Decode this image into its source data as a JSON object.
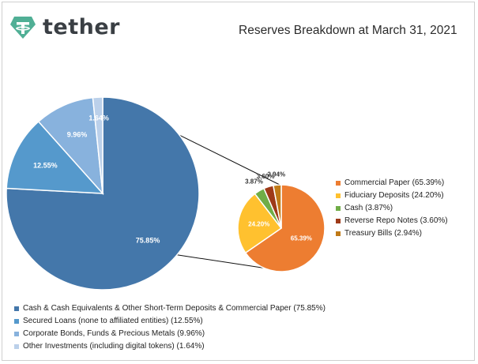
{
  "brand": {
    "name": "tether",
    "logo_icon": "tether-logo-icon",
    "logo_color": "#50AF95"
  },
  "chart_data": [
    {
      "type": "pie",
      "title": "Reserves Breakdown at March 31, 2021",
      "series": [
        {
          "values": [
            75.85,
            12.55,
            9.96,
            1.64
          ],
          "labels": [
            "75.85%",
            "12.55%",
            "9.96%",
            "1.64%"
          ]
        }
      ],
      "categories": [
        "Cash & Cash Equivalents & Other Short-Term Deposits & Commercial Paper (75.85%)",
        "Secured Loans (none to affiliated entities) (12.55%)",
        "Corporate Bonds, Funds & Precious Metals (9.96%)",
        "Other Investments (including digital tokens) (1.64%)"
      ],
      "colors": [
        "#4477AA",
        "#5599CC",
        "#88B2DD",
        "#BBD0EA"
      ],
      "legend": "bottom-left"
    },
    {
      "type": "pie",
      "series": [
        {
          "values": [
            65.39,
            24.2,
            3.87,
            3.6,
            2.94
          ],
          "labels": [
            "65.39%",
            "24.20%",
            "3.87%",
            "3.60%",
            "2.94%"
          ]
        }
      ],
      "categories": [
        "Commercial Paper (65.39%)",
        "Fiduciary Deposits (24.20%)",
        "Cash (3.87%)",
        "Reverse Repo Notes (3.60%)",
        "Treasury Bills (2.94%)"
      ],
      "colors": [
        "#ED7D31",
        "#FFC12F",
        "#70AD47",
        "#9E3A18",
        "#C07A17"
      ],
      "legend": "right"
    }
  ]
}
